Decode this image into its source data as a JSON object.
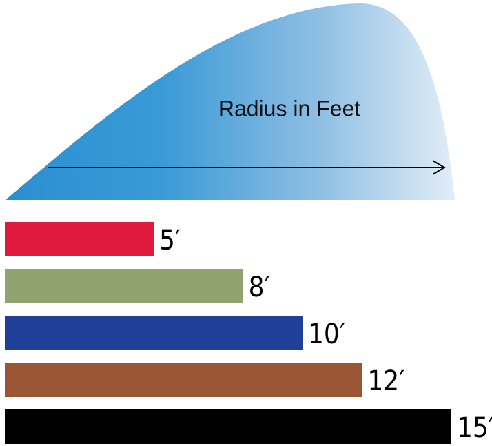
{
  "chart_data": {
    "type": "bar",
    "orientation": "horizontal",
    "title": "Radius in Feet",
    "values": [
      5,
      8,
      10,
      12,
      15
    ],
    "value_labels": [
      "5′",
      "8′",
      "10′",
      "12′",
      "15′"
    ],
    "colors": [
      "#e0193f",
      "#8fa270",
      "#1f3f99",
      "#9a5534",
      "#000000"
    ],
    "xlim": [
      0,
      15
    ]
  }
}
